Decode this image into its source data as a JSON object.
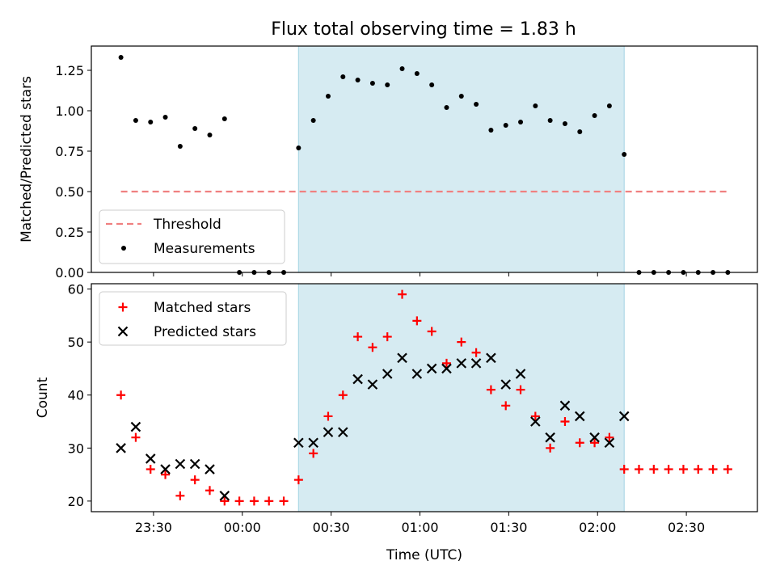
{
  "title": "Flux total observing time = 1.83 h",
  "colors": {
    "shade": "#add8e6",
    "threshold": "#f08080",
    "measurement": "#000000",
    "matched": "#ff0000",
    "predicted": "#000000"
  },
  "chart_data": [
    {
      "type": "scatter",
      "name": "ratio-panel",
      "ylabel": "Matched/Predicted stars",
      "xlabel": "",
      "ylim": [
        0,
        1.4
      ],
      "yticks": [
        0.0,
        0.25,
        0.5,
        0.75,
        1.0,
        1.25
      ],
      "ytick_labels": [
        "0.00",
        "0.25",
        "0.50",
        "0.75",
        "1.00",
        "1.25"
      ],
      "shaded_range": [
        "00:19",
        "02:09"
      ],
      "legend": {
        "position": "lower-left",
        "entries": [
          "Threshold",
          "Measurements"
        ]
      },
      "threshold": {
        "name": "Threshold",
        "value": 0.5,
        "x_start": "23:19",
        "x_end": "02:44",
        "style": "dashed"
      },
      "series": [
        {
          "name": "Measurements",
          "x": [
            "23:19",
            "23:24",
            "23:29",
            "23:34",
            "23:39",
            "23:44",
            "23:49",
            "23:54",
            "23:59",
            "00:04",
            "00:09",
            "00:14",
            "00:19",
            "00:24",
            "00:29",
            "00:34",
            "00:39",
            "00:44",
            "00:49",
            "00:54",
            "00:59",
            "01:04",
            "01:09",
            "01:14",
            "01:19",
            "01:24",
            "01:29",
            "01:34",
            "01:39",
            "01:44",
            "01:49",
            "01:54",
            "01:59",
            "02:04",
            "02:09",
            "02:14",
            "02:19",
            "02:24",
            "02:29",
            "02:34",
            "02:39",
            "02:44"
          ],
          "y": [
            1.33,
            0.94,
            0.93,
            0.96,
            0.78,
            0.89,
            0.85,
            0.95,
            0,
            0,
            0,
            0,
            0.77,
            0.94,
            1.09,
            1.21,
            1.19,
            1.17,
            1.16,
            1.26,
            1.23,
            1.16,
            1.02,
            1.09,
            1.04,
            0.88,
            0.91,
            0.93,
            1.03,
            0.94,
            0.92,
            0.87,
            0.97,
            1.03,
            0.73,
            0,
            0,
            0,
            0,
            0,
            0,
            0
          ]
        }
      ]
    },
    {
      "type": "scatter",
      "name": "count-panel",
      "ylabel": "Count",
      "xlabel": "Time (UTC)",
      "ylim": [
        18,
        61
      ],
      "yticks": [
        20,
        30,
        40,
        50,
        60
      ],
      "ytick_labels": [
        "20",
        "30",
        "40",
        "50",
        "60"
      ],
      "xlim": [
        "23:09",
        "02:54"
      ],
      "xticks": [
        "23:30",
        "00:00",
        "00:30",
        "01:00",
        "01:30",
        "02:00",
        "02:30"
      ],
      "xtick_labels": [
        "23:30",
        "00:00",
        "00:30",
        "01:00",
        "01:30",
        "02:00",
        "02:30"
      ],
      "shaded_range": [
        "00:19",
        "02:09"
      ],
      "legend": {
        "position": "top-left",
        "entries": [
          "Matched stars",
          "Predicted stars"
        ]
      },
      "series": [
        {
          "name": "Matched stars",
          "marker": "plus",
          "x": [
            "23:19",
            "23:24",
            "23:29",
            "23:34",
            "23:39",
            "23:44",
            "23:49",
            "23:54",
            "23:59",
            "00:04",
            "00:09",
            "00:14",
            "00:19",
            "00:24",
            "00:29",
            "00:34",
            "00:39",
            "00:44",
            "00:49",
            "00:54",
            "00:59",
            "01:04",
            "01:09",
            "01:14",
            "01:19",
            "01:24",
            "01:29",
            "01:34",
            "01:39",
            "01:44",
            "01:49",
            "01:54",
            "01:59",
            "02:04",
            "02:09",
            "02:14",
            "02:19",
            "02:24",
            "02:29",
            "02:34",
            "02:39",
            "02:44"
          ],
          "y": [
            40,
            32,
            26,
            25,
            21,
            24,
            22,
            20,
            20,
            20,
            20,
            20,
            24,
            29,
            36,
            40,
            51,
            49,
            51,
            59,
            54,
            52,
            46,
            50,
            48,
            41,
            38,
            41,
            36,
            30,
            35,
            31,
            31,
            32,
            26,
            26,
            26,
            26,
            26,
            26,
            26,
            26
          ]
        },
        {
          "name": "Predicted stars",
          "marker": "x",
          "x": [
            "23:19",
            "23:24",
            "23:29",
            "23:34",
            "23:39",
            "23:44",
            "23:49",
            "23:54",
            "00:19",
            "00:24",
            "00:29",
            "00:34",
            "00:39",
            "00:44",
            "00:49",
            "00:54",
            "00:59",
            "01:04",
            "01:09",
            "01:14",
            "01:19",
            "01:24",
            "01:29",
            "01:34",
            "01:39",
            "01:44",
            "01:49",
            "01:54",
            "01:59",
            "02:04",
            "02:09"
          ],
          "y": [
            30,
            34,
            28,
            26,
            27,
            27,
            26,
            21,
            31,
            31,
            33,
            33,
            43,
            42,
            44,
            47,
            44,
            45,
            45,
            46,
            46,
            47,
            42,
            44,
            35,
            32,
            38,
            36,
            32,
            31,
            36
          ]
        }
      ]
    }
  ]
}
